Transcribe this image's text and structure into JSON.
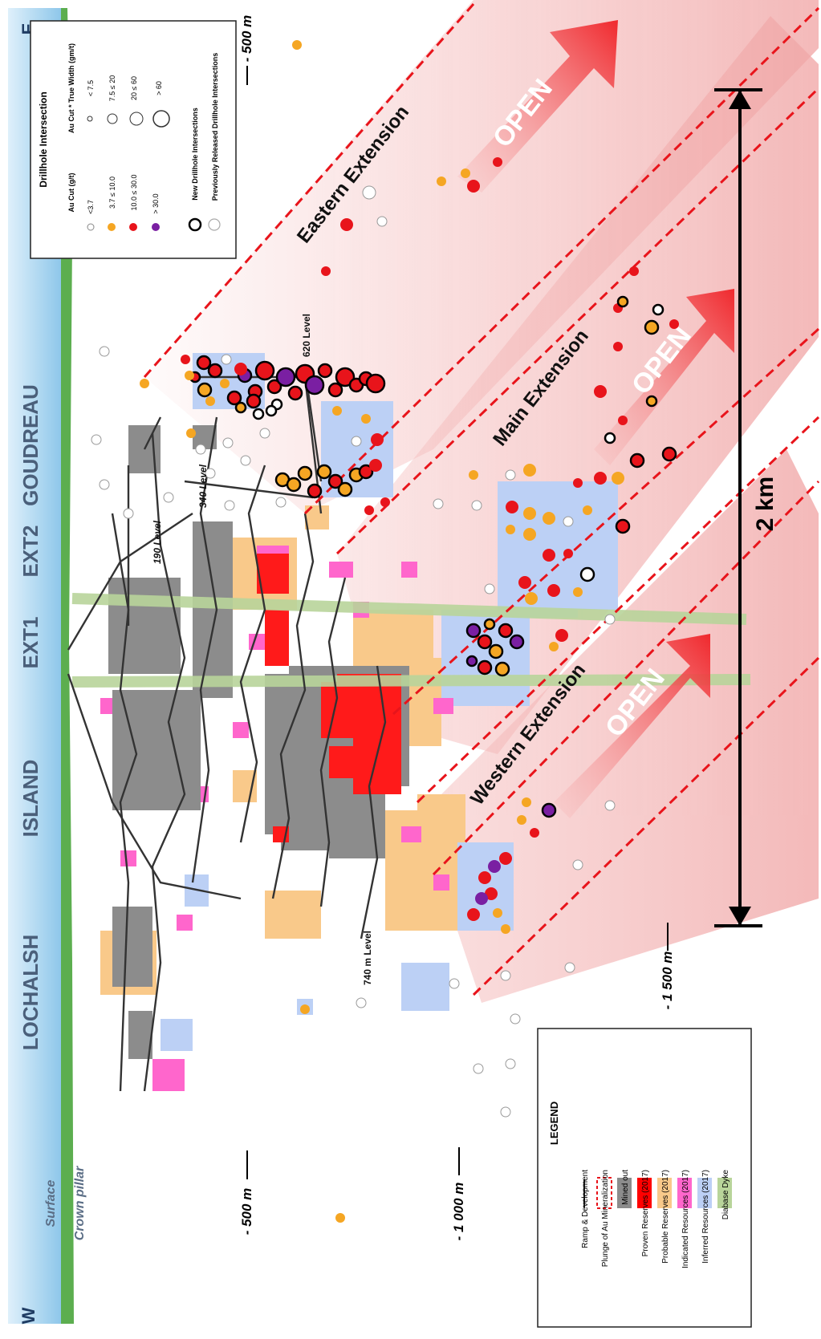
{
  "compass": {
    "east": "E",
    "west": "W"
  },
  "zones": [
    "GOUDREAU",
    "EXT2",
    "EXT1",
    "ISLAND",
    "LOCHALSH"
  ],
  "labels": {
    "surface": "Surface",
    "crown_pillar": "Crown pillar"
  },
  "levels": [
    "190 Level",
    "340 Level",
    "620 Level",
    "740 m Level"
  ],
  "depth_markers": [
    "- 500 m",
    "- 500 m",
    "- 1 000 m",
    "- 1 500 m"
  ],
  "scale": {
    "label": "2 km"
  },
  "extensions": [
    "Eastern Extension",
    "Main Extension",
    "Western Extension"
  ],
  "open_labels": [
    "OPEN",
    "OPEN",
    "OPEN"
  ],
  "drillhole_legend": {
    "title": "Drillhole Intersection",
    "col1_header": "Au Cut (g/t)",
    "col2_header": "Au Cut * True Width  (gm/t)",
    "grades": [
      {
        "label": "<3.7",
        "color": "#ffffff"
      },
      {
        "label": "3.7 ≤ 10.0",
        "color": "#f5a623"
      },
      {
        "label": "10.0 ≤ 30.0",
        "color": "#e8141b"
      },
      {
        "label": "> 30.0",
        "color": "#7a1fa2"
      }
    ],
    "widths": [
      "< 7.5",
      "7.5 ≤ 20",
      "20 ≤ 60",
      "> 60"
    ],
    "new_label": "New Drillhole Intersections",
    "previous_label": "Previously Released Drillhole Intersections"
  },
  "legend": {
    "title": "LEGEND",
    "items": [
      {
        "label": "Ramp & Development",
        "color": "#222222"
      },
      {
        "label": "Plunge of Au Mineralization",
        "color": "#e8141b"
      },
      {
        "label": "Mined out",
        "color": "#8c8c8c"
      },
      {
        "label": "Proven Reserves (2017)",
        "color": "#ff0000"
      },
      {
        "label": "Probable Reserves (2017)",
        "color": "#f9c98a"
      },
      {
        "label": "Indicated Resources (2017)",
        "color": "#ff66cc"
      },
      {
        "label": "Inferred Resources (2017)",
        "color": "#bcd0f5"
      },
      {
        "label": "Diabase Dyke",
        "color": "#b8d49a"
      }
    ]
  }
}
